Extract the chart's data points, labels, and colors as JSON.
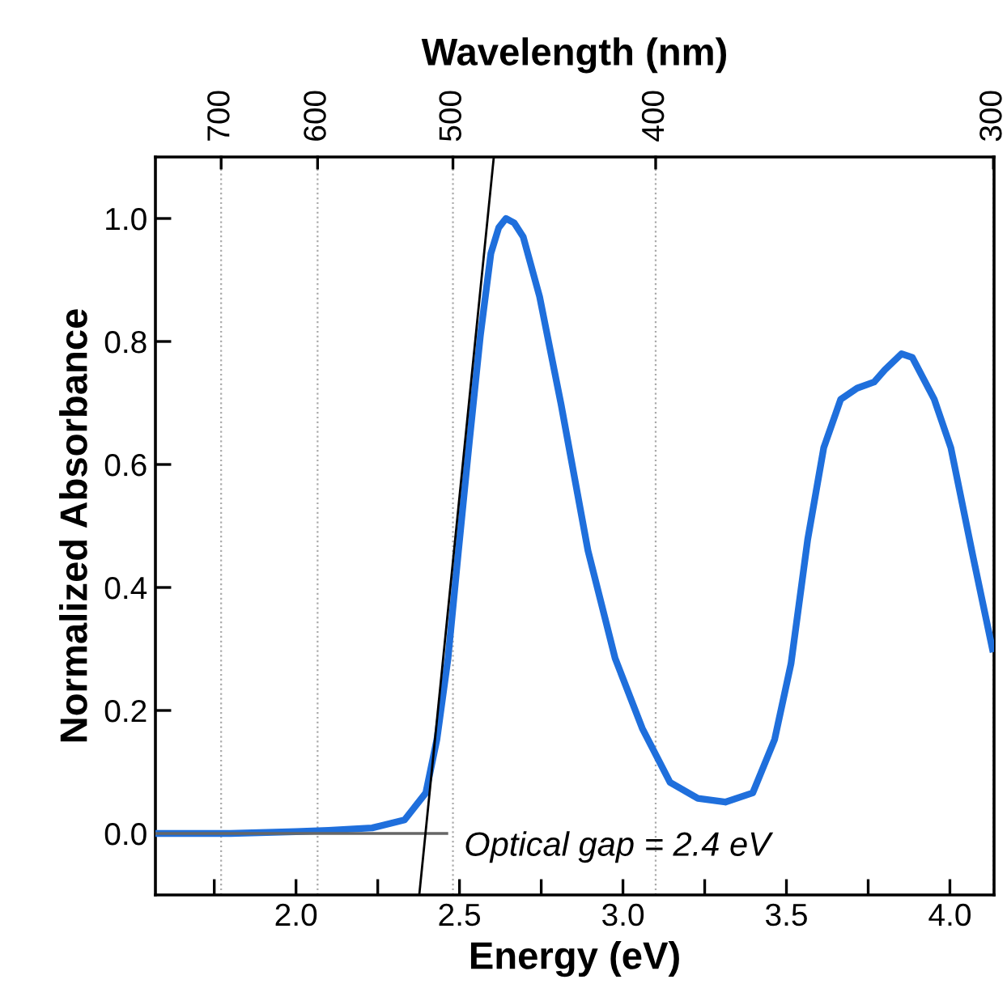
{
  "chart_data": {
    "type": "line",
    "xlabel": "Energy (eV)",
    "ylabel": "Normalized Absorbance",
    "x2label": "Wavelength (nm)",
    "xlim": [
      1.57,
      4.135
    ],
    "ylim": [
      -0.1,
      1.1
    ],
    "xticks": [
      {
        "value": 1.75,
        "label": null
      },
      {
        "value": 2.0,
        "label": "2.0"
      },
      {
        "value": 2.25,
        "label": null
      },
      {
        "value": 2.5,
        "label": "2.5"
      },
      {
        "value": 2.75,
        "label": null
      },
      {
        "value": 3.0,
        "label": "3.0"
      },
      {
        "value": 3.25,
        "label": null
      },
      {
        "value": 3.5,
        "label": "3.5"
      },
      {
        "value": 3.75,
        "label": null
      },
      {
        "value": 4.0,
        "label": "4.0"
      }
    ],
    "yticks": [
      {
        "value": 0.0,
        "label": "0.0"
      },
      {
        "value": 0.2,
        "label": "0.2"
      },
      {
        "value": 0.4,
        "label": "0.4"
      },
      {
        "value": 0.6,
        "label": "0.6"
      },
      {
        "value": 0.8,
        "label": "0.8"
      },
      {
        "value": 1.0,
        "label": "1.0"
      }
    ],
    "series": [
      {
        "color": "#1f6fdc",
        "x": [
          1.57,
          1.8,
          2.0,
          2.1,
          2.233,
          2.332,
          2.397,
          2.431,
          2.465,
          2.497,
          2.53,
          2.564,
          2.596,
          2.62,
          2.642,
          2.667,
          2.695,
          2.745,
          2.811,
          2.893,
          2.976,
          3.059,
          3.144,
          3.229,
          3.313,
          3.397,
          3.464,
          3.514,
          3.565,
          3.614,
          3.666,
          3.716,
          3.768,
          3.801,
          3.852,
          3.885,
          3.952,
          4.003,
          4.07,
          4.13
        ],
        "values": [
          0.0,
          0.0,
          0.003,
          0.005,
          0.009,
          0.022,
          0.066,
          0.153,
          0.285,
          0.46,
          0.636,
          0.81,
          0.943,
          0.985,
          1.0,
          0.993,
          0.97,
          0.873,
          0.697,
          0.46,
          0.285,
          0.171,
          0.083,
          0.057,
          0.051,
          0.066,
          0.153,
          0.276,
          0.478,
          0.627,
          0.706,
          0.724,
          0.734,
          0.754,
          0.78,
          0.774,
          0.706,
          0.627,
          0.452,
          0.3
        ]
      },
      {
        "type": "line",
        "color": "#000000",
        "x": [
          2.377,
          2.605
        ],
        "values": [
          -0.1,
          1.1
        ]
      },
      {
        "type": "line",
        "color": "#666666",
        "x": [
          1.57,
          2.461
        ],
        "values": [
          0.0,
          0.0
        ]
      }
    ],
    "ref_lines": [
      {
        "axis": "x",
        "value": 1.771,
        "color": "#aaaaaa",
        "line_style": "dotted"
      },
      {
        "axis": "x",
        "value": 2.066,
        "color": "#aaaaaa",
        "line_style": "dotted"
      },
      {
        "axis": "x",
        "value": 2.48,
        "color": "#aaaaaa",
        "line_style": "dotted"
      },
      {
        "axis": "x",
        "value": 3.1,
        "color": "#aaaaaa",
        "line_style": "dotted"
      },
      {
        "axis": "x",
        "value": 4.133,
        "color": "#aaaaaa",
        "line_style": "dotted"
      }
    ],
    "annotations": [
      "Optical gap = 2.4 eV",
      "700",
      "600",
      "500",
      "400",
      "300"
    ],
    "grid": false,
    "legend": false
  }
}
